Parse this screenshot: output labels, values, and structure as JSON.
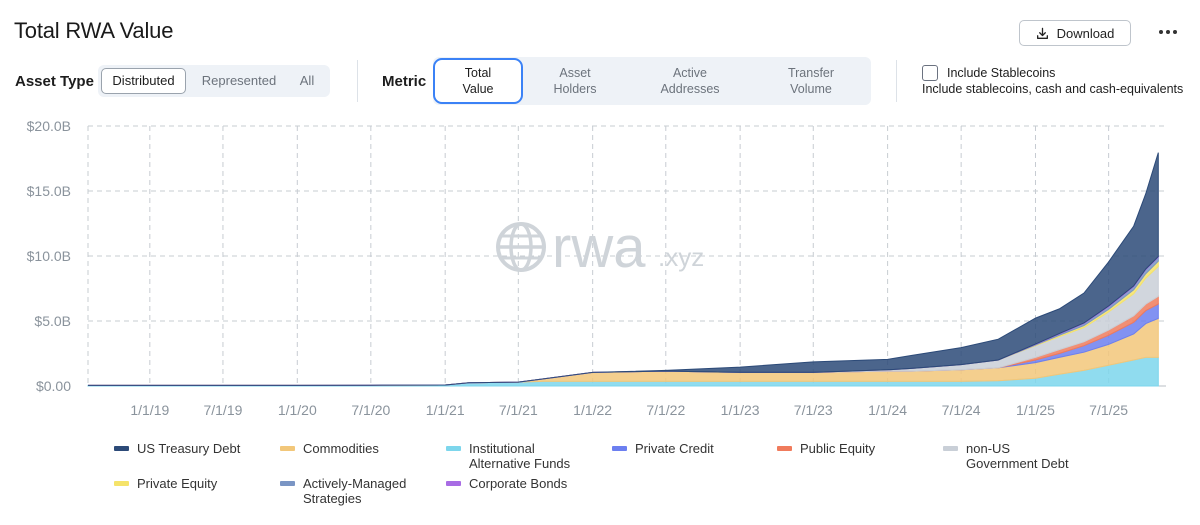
{
  "header": {
    "title": "Total RWA Value",
    "download_label": "Download",
    "more_icon": "more-horizontal-icon"
  },
  "filters": {
    "asset_type_label": "Asset Type",
    "asset_type_options": [
      "Distributed",
      "Represented",
      "All"
    ],
    "asset_type_selected": "Distributed",
    "metric_label": "Metric",
    "metric_options": [
      [
        "Total",
        "Value"
      ],
      [
        "Asset",
        "Holders"
      ],
      [
        "Active",
        "Addresses"
      ],
      [
        "Transfer",
        "Volume"
      ]
    ],
    "metric_selected": "Total Value",
    "stablecoins_label": "Include Stablecoins",
    "stablecoins_checked": false,
    "stablecoins_description": "Include stablecoins, cash and cash-equivalents"
  },
  "watermark": {
    "word": "rwa",
    "suffix": ".xyz",
    "icon": "globe-icon"
  },
  "chart_data": {
    "type": "area",
    "stacked": true,
    "x_label": "",
    "y_label": "",
    "ylim": [
      0,
      20
    ],
    "y_unit": "$B",
    "y_ticks": [
      "$0.00",
      "$5.0B",
      "$10.0B",
      "$15.0B",
      "$20.0B"
    ],
    "x_range": [
      "2018-08-01",
      "2025-11-20"
    ],
    "x_ticks": [
      "1/1/19",
      "7/1/19",
      "1/1/20",
      "7/1/20",
      "1/1/21",
      "7/1/21",
      "1/1/22",
      "7/1/22",
      "1/1/23",
      "7/1/23",
      "1/1/24",
      "7/1/24",
      "1/1/25",
      "7/1/25"
    ],
    "grid": true,
    "legend_position": "bottom",
    "x": [
      "2018-08",
      "2019-01",
      "2019-07",
      "2020-01",
      "2020-07",
      "2021-01",
      "2021-03",
      "2021-07",
      "2021-09",
      "2022-01",
      "2022-07",
      "2023-01",
      "2023-07",
      "2024-01",
      "2024-03",
      "2024-07",
      "2024-10",
      "2025-01",
      "2025-03",
      "2025-05",
      "2025-07",
      "2025-09",
      "2025-10",
      "2025-11"
    ],
    "series": [
      {
        "name": "Institutional Alternative Funds",
        "color": "#7dd6ec",
        "values": [
          0.05,
          0.05,
          0.05,
          0.05,
          0.06,
          0.08,
          0.25,
          0.3,
          0.35,
          0.35,
          0.35,
          0.35,
          0.35,
          0.35,
          0.35,
          0.35,
          0.4,
          0.6,
          0.9,
          1.2,
          1.6,
          2.0,
          2.2,
          2.2
        ]
      },
      {
        "name": "Commodities",
        "color": "#f2c77a",
        "values": [
          0,
          0,
          0,
          0,
          0,
          0,
          0,
          0,
          0.2,
          0.7,
          0.8,
          0.7,
          0.7,
          0.8,
          0.8,
          0.9,
          1.0,
          1.2,
          1.3,
          1.4,
          1.6,
          2.0,
          2.6,
          3.0
        ]
      },
      {
        "name": "Private Credit",
        "color": "#6c7ff0",
        "values": [
          0,
          0,
          0,
          0,
          0,
          0,
          0,
          0,
          0,
          0,
          0,
          0,
          0,
          0,
          0,
          0,
          0,
          0.2,
          0.3,
          0.5,
          0.7,
          0.9,
          1.0,
          1.1
        ]
      },
      {
        "name": "Public Equity",
        "color": "#f07b5c",
        "values": [
          0,
          0,
          0,
          0,
          0,
          0,
          0,
          0,
          0,
          0,
          0,
          0,
          0,
          0,
          0,
          0,
          0,
          0.2,
          0.3,
          0.3,
          0.4,
          0.5,
          0.5,
          0.6
        ]
      },
      {
        "name": "non-US Government Debt",
        "color": "#c9cfd7",
        "values": [
          0,
          0,
          0,
          0,
          0,
          0,
          0,
          0,
          0,
          0,
          0,
          0,
          0,
          0.1,
          0.2,
          0.4,
          0.6,
          0.9,
          1.0,
          1.1,
          1.4,
          1.7,
          2.0,
          2.3
        ]
      },
      {
        "name": "Private Equity",
        "color": "#f5e36a",
        "values": [
          0,
          0,
          0,
          0,
          0,
          0,
          0,
          0,
          0,
          0,
          0,
          0,
          0,
          0,
          0,
          0,
          0,
          0.05,
          0.1,
          0.15,
          0.2,
          0.3,
          0.35,
          0.4
        ]
      },
      {
        "name": "Actively-Managed Strategies",
        "color": "#7a95c4",
        "values": [
          0,
          0,
          0,
          0,
          0,
          0,
          0,
          0,
          0,
          0,
          0,
          0,
          0,
          0,
          0,
          0,
          0,
          0.05,
          0.1,
          0.15,
          0.2,
          0.25,
          0.3,
          0.3
        ]
      },
      {
        "name": "Corporate Bonds",
        "color": "#a86ce4",
        "values": [
          0,
          0,
          0,
          0,
          0,
          0,
          0,
          0,
          0,
          0,
          0,
          0,
          0,
          0,
          0,
          0,
          0,
          0.02,
          0.03,
          0.05,
          0.05,
          0.05,
          0.05,
          0.05
        ]
      },
      {
        "name": "US Treasury Debt",
        "color": "#2c4a78",
        "values": [
          0,
          0,
          0,
          0,
          0,
          0,
          0,
          0,
          0,
          0,
          0.05,
          0.4,
          0.8,
          0.8,
          1.0,
          1.3,
          1.6,
          2.0,
          1.9,
          2.3,
          3.4,
          4.6,
          5.8,
          8.0
        ]
      }
    ]
  }
}
